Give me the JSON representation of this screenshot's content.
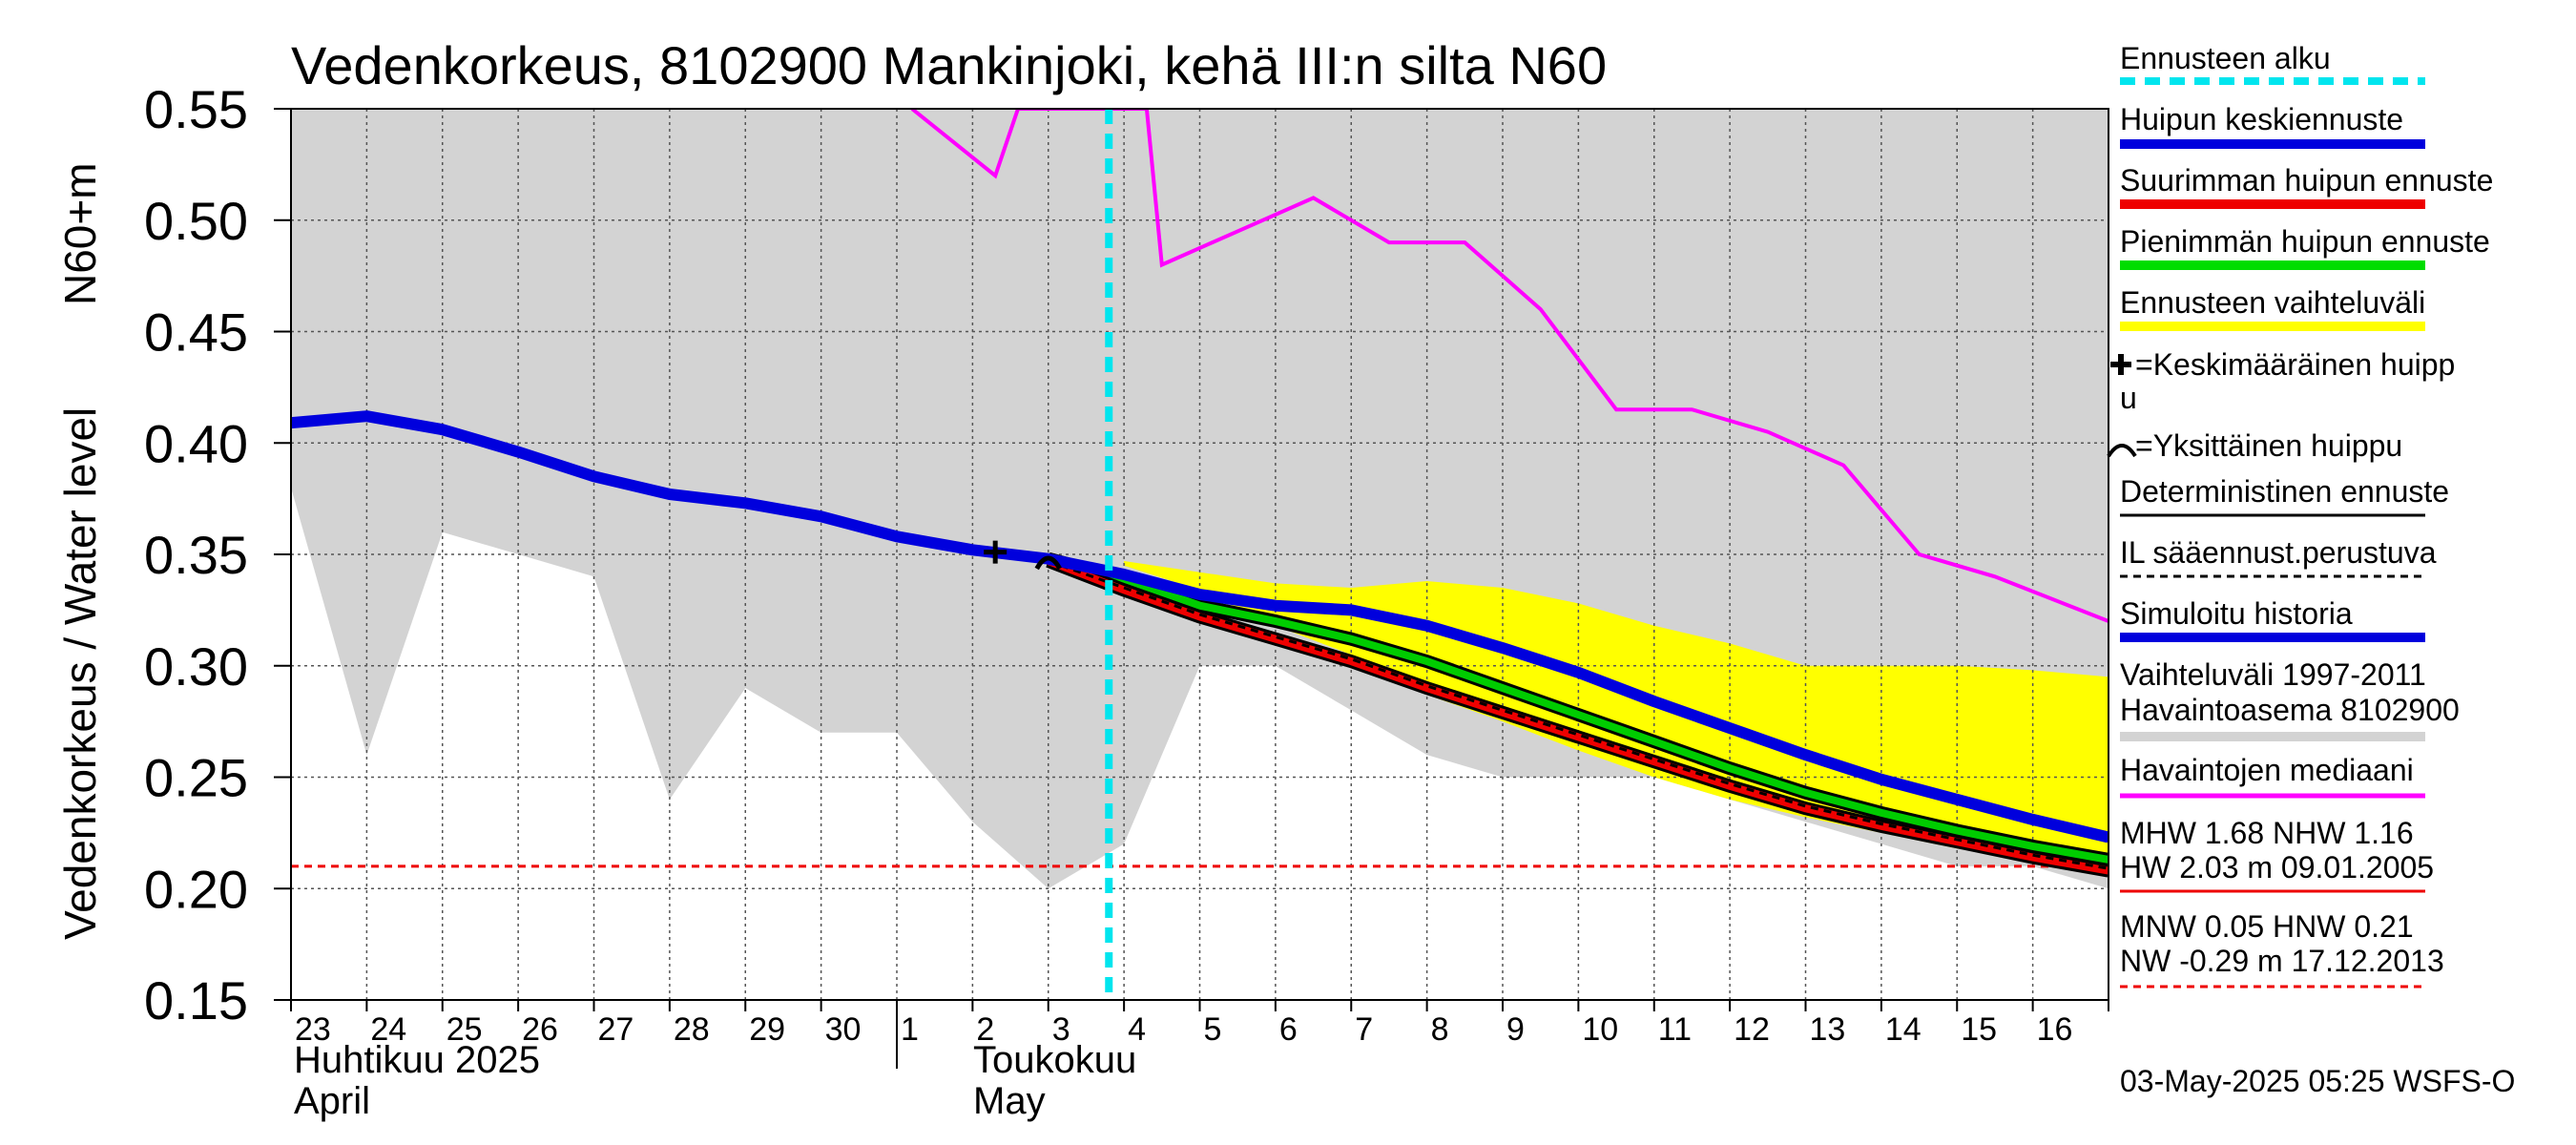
{
  "chart_data": {
    "type": "line",
    "title": "Vedenkorkeus, 8102900 Mankinjoki, kehä III:n silta N60",
    "ylabel_fi": "Vedenkorkeus / Water level",
    "ylabel_unit": "N60+m",
    "ylim": [
      0.15,
      0.55
    ],
    "yticks": [
      "0.55",
      "0.50",
      "0.45",
      "0.40",
      "0.35",
      "0.30",
      "0.25",
      "0.20",
      "0.15"
    ],
    "x_day_labels": [
      "23",
      "24",
      "25",
      "26",
      "27",
      "28",
      "29",
      "30",
      "1",
      "2",
      "3",
      "4",
      "5",
      "6",
      "7",
      "8",
      "9",
      "10",
      "11",
      "12",
      "13",
      "14",
      "15",
      "16"
    ],
    "month_labels": {
      "april_fi": "Huhtikuu  2025",
      "april_en": "April",
      "may_fi": "Toukokuu",
      "may_en": "May"
    },
    "forecast_start_day": 10.8,
    "series": [
      {
        "name": "Vaihteluväli 1997-2011 Havaintoasema 8102900",
        "color": "#d3d3d3",
        "upper": [
          [
            0,
            0.55
          ],
          [
            24,
            0.55
          ]
        ],
        "lower": [
          [
            0,
            0.38
          ],
          [
            1,
            0.26
          ],
          [
            2,
            0.36
          ],
          [
            4,
            0.34
          ],
          [
            5,
            0.24
          ],
          [
            6,
            0.29
          ],
          [
            7,
            0.27
          ],
          [
            8,
            0.27
          ],
          [
            9,
            0.23
          ],
          [
            10,
            0.2
          ],
          [
            11,
            0.22
          ],
          [
            12,
            0.3
          ],
          [
            13,
            0.3
          ],
          [
            14,
            0.28
          ],
          [
            15,
            0.26
          ],
          [
            16,
            0.25
          ],
          [
            17,
            0.25
          ],
          [
            18,
            0.25
          ],
          [
            19,
            0.24
          ],
          [
            20,
            0.23
          ],
          [
            21,
            0.22
          ],
          [
            22,
            0.21
          ],
          [
            23,
            0.21
          ],
          [
            24,
            0.2
          ]
        ]
      },
      {
        "name": "Ennusteen vaihteluväli",
        "color": "#ffff00",
        "upper": [
          [
            11,
            0.347
          ],
          [
            12,
            0.342
          ],
          [
            13,
            0.337
          ],
          [
            14,
            0.335
          ],
          [
            15,
            0.338
          ],
          [
            16,
            0.335
          ],
          [
            17,
            0.328
          ],
          [
            18,
            0.318
          ],
          [
            19,
            0.31
          ],
          [
            20,
            0.3
          ],
          [
            21,
            0.3
          ],
          [
            22,
            0.3
          ],
          [
            23,
            0.298
          ],
          [
            24,
            0.295
          ]
        ],
        "lower": [
          [
            11,
            0.345
          ],
          [
            12,
            0.334
          ],
          [
            13,
            0.318
          ],
          [
            14,
            0.305
          ],
          [
            15,
            0.287
          ],
          [
            16,
            0.275
          ],
          [
            17,
            0.262
          ],
          [
            18,
            0.25
          ],
          [
            19,
            0.24
          ],
          [
            20,
            0.232
          ],
          [
            21,
            0.225
          ],
          [
            22,
            0.218
          ],
          [
            23,
            0.212
          ],
          [
            24,
            0.207
          ]
        ]
      },
      {
        "name": "Havaintojen mediaani",
        "color": "#ff00ff",
        "points": [
          [
            8.2,
            0.55
          ],
          [
            9.3,
            0.52
          ],
          [
            9.6,
            0.55
          ],
          [
            11.3,
            0.55
          ],
          [
            11.5,
            0.48
          ],
          [
            12.5,
            0.495
          ],
          [
            13.5,
            0.51
          ],
          [
            14.5,
            0.49
          ],
          [
            15.5,
            0.49
          ],
          [
            16.5,
            0.46
          ],
          [
            17.5,
            0.415
          ],
          [
            18.5,
            0.415
          ],
          [
            19.5,
            0.405
          ],
          [
            20.5,
            0.39
          ],
          [
            21.5,
            0.35
          ],
          [
            22.5,
            0.34
          ],
          [
            24,
            0.32
          ]
        ]
      },
      {
        "name": "Simuloitu historia",
        "color": "#0000dd",
        "points": [
          [
            0,
            0.409
          ],
          [
            1,
            0.412
          ],
          [
            2,
            0.406
          ],
          [
            3,
            0.396
          ],
          [
            4,
            0.385
          ],
          [
            5,
            0.377
          ],
          [
            6,
            0.373
          ],
          [
            7,
            0.367
          ],
          [
            8,
            0.358
          ],
          [
            9,
            0.352
          ],
          [
            10,
            0.348
          ],
          [
            11,
            0.341
          ],
          [
            12,
            0.332
          ],
          [
            13,
            0.327
          ],
          [
            14,
            0.325
          ],
          [
            15,
            0.318
          ],
          [
            16,
            0.308
          ],
          [
            17,
            0.297
          ],
          [
            18,
            0.284
          ],
          [
            19,
            0.272
          ],
          [
            20,
            0.26
          ],
          [
            21,
            0.249
          ],
          [
            22,
            0.24
          ],
          [
            23,
            0.231
          ],
          [
            24,
            0.223
          ]
        ]
      },
      {
        "name": "Pienimmän huipun ennuste",
        "color": "#00cc00",
        "points": [
          [
            10,
            0.348
          ],
          [
            11,
            0.339
          ],
          [
            12,
            0.327
          ],
          [
            13,
            0.32
          ],
          [
            14,
            0.312
          ],
          [
            15,
            0.302
          ],
          [
            16,
            0.29
          ],
          [
            17,
            0.278
          ],
          [
            18,
            0.266
          ],
          [
            19,
            0.254
          ],
          [
            20,
            0.243
          ],
          [
            21,
            0.234
          ],
          [
            22,
            0.226
          ],
          [
            23,
            0.219
          ],
          [
            24,
            0.213
          ]
        ]
      },
      {
        "name": "Suurimman huipun ennuste",
        "color": "#ee0000",
        "points": [
          [
            10,
            0.347
          ],
          [
            11,
            0.334
          ],
          [
            12,
            0.322
          ],
          [
            13,
            0.312
          ],
          [
            14,
            0.302
          ],
          [
            15,
            0.29
          ],
          [
            16,
            0.279
          ],
          [
            17,
            0.268
          ],
          [
            18,
            0.257
          ],
          [
            19,
            0.246
          ],
          [
            20,
            0.236
          ],
          [
            21,
            0.228
          ],
          [
            22,
            0.221
          ],
          [
            23,
            0.214
          ],
          [
            24,
            0.208
          ]
        ]
      },
      {
        "name": "IL sääennust.perustuva",
        "color": "#000000",
        "points": [
          [
            10,
            0.347
          ],
          [
            11,
            0.335
          ],
          [
            12,
            0.323
          ],
          [
            13,
            0.313
          ],
          [
            14,
            0.303
          ],
          [
            15,
            0.291
          ],
          [
            16,
            0.28
          ],
          [
            17,
            0.269
          ],
          [
            18,
            0.258
          ],
          [
            19,
            0.247
          ],
          [
            20,
            0.237
          ],
          [
            21,
            0.229
          ],
          [
            22,
            0.222
          ],
          [
            23,
            0.215
          ],
          [
            24,
            0.209
          ]
        ]
      }
    ],
    "markers": [
      {
        "name": "Keskimääräinen huippu",
        "x": 9.3,
        "y": 0.351
      },
      {
        "name": "Yksittäinen huippu",
        "x": 10.0,
        "y": 0.347
      }
    ],
    "reference_line": {
      "y": 0.21,
      "color": "#ee0000"
    }
  },
  "legend": {
    "items": [
      {
        "label": "Ennusteen alku",
        "color": "#00e5ee",
        "style": "dashed-thick"
      },
      {
        "label": "Huipun keskiennuste",
        "color": "#0000dd",
        "style": "solid-thick"
      },
      {
        "label": "Suurimman huipun ennuste",
        "color": "#ee0000",
        "style": "solid-thick"
      },
      {
        "label": "Pienimmän huipun ennuste",
        "color": "#00cc00",
        "style": "solid-thick"
      },
      {
        "label": "Ennusteen vaihteluväli",
        "color": "#ffff00",
        "style": "solid-thick"
      },
      {
        "label": "=Keskimääräinen huipp",
        "label2": "u",
        "color": "#000000",
        "style": "none"
      },
      {
        "label": "=Yksittäinen huippu",
        "color": "#000000",
        "style": "none"
      },
      {
        "label": "Deterministinen ennuste",
        "color": "#000000",
        "style": "solid-thin"
      },
      {
        "label": "IL sääennust.perustuva",
        "color": "#000000",
        "style": "dashed-thin"
      },
      {
        "label": "Simuloitu historia",
        "color": "#0000dd",
        "style": "solid-thick"
      },
      {
        "label": "Vaihteluväli 1997-2011",
        "label2": " Havaintoasema 8102900",
        "color": "#d3d3d3",
        "style": "solid-thick"
      },
      {
        "label": "Havaintojen mediaani",
        "color": "#ff00ff",
        "style": "solid-mid"
      }
    ],
    "stats1": {
      "line1": "MHW   1.68 NHW   1.16",
      "line2": "HW   2.03 m 09.01.2005"
    },
    "stats2": {
      "line1": "MNW   0.05 HNW   0.21",
      "line2": "NW  -0.29 m 17.12.2013"
    }
  },
  "footer": "03-May-2025 05:25 WSFS-O"
}
